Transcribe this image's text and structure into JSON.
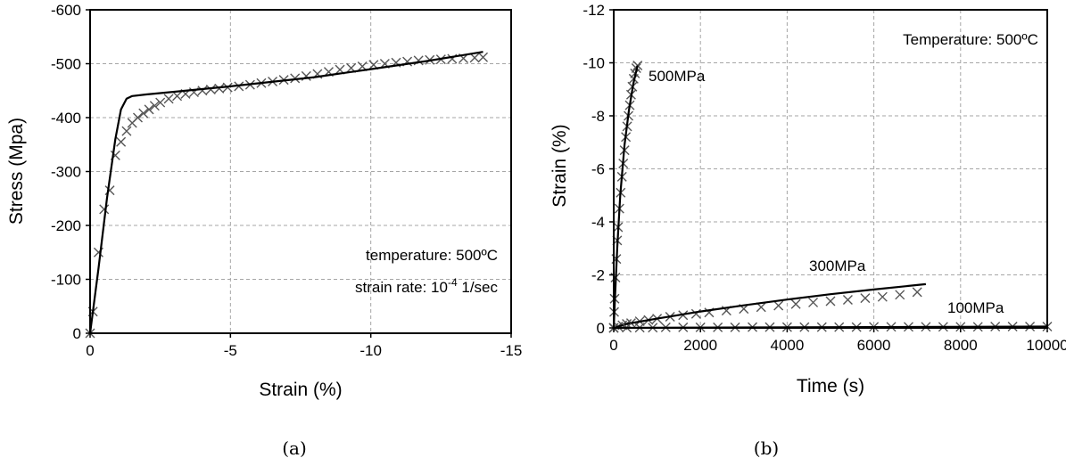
{
  "chart_data": [
    {
      "type": "scatter",
      "panel_label": "(a)",
      "xlabel": "Strain (%)",
      "ylabel": "Stress (Mpa)",
      "xlim": [
        0,
        -15
      ],
      "ylim": [
        0,
        -600
      ],
      "x_ticks": [
        0,
        -5,
        -10,
        -15
      ],
      "y_ticks": [
        0,
        -100,
        -200,
        -300,
        -400,
        -500,
        -600
      ],
      "x_tick_labels": [
        "0",
        "-5",
        "-10",
        "-15"
      ],
      "y_tick_labels": [
        "0",
        "-100",
        "-200",
        "-300",
        "-400",
        "-500",
        "-600"
      ],
      "grid": true,
      "annotations": {
        "temperature": "temperature: 500ºC",
        "strain_rate_prefix": "strain rate: 10",
        "strain_rate_exp": "-4",
        "strain_rate_suffix": " 1/sec"
      },
      "series": [
        {
          "style": "line",
          "x": [
            0,
            -0.3,
            -0.6,
            -0.9,
            -1.1,
            -1.3,
            -1.5,
            -2,
            -3,
            -5,
            -8,
            -10,
            -12,
            -14
          ],
          "y": [
            0,
            -120,
            -250,
            -360,
            -415,
            -435,
            -440,
            -443,
            -448,
            -458,
            -475,
            -490,
            -505,
            -522
          ]
        },
        {
          "style": "markers",
          "marker": "x",
          "x": [
            0,
            -0.1,
            -0.3,
            -0.5,
            -0.7,
            -0.9,
            -1.1,
            -1.3,
            -1.5,
            -1.7,
            -1.9,
            -2.1,
            -2.3,
            -2.5,
            -2.8,
            -3.1,
            -3.4,
            -3.7,
            -4.0,
            -4.3,
            -4.6,
            -4.9,
            -5.3,
            -5.7,
            -6.1,
            -6.5,
            -6.9,
            -7.3,
            -7.7,
            -8.1,
            -8.5,
            -8.9,
            -9.3,
            -9.7,
            -10.1,
            -10.5,
            -10.9,
            -11.3,
            -11.7,
            -12.1,
            -12.5,
            -12.9,
            -13.3,
            -13.7,
            -14.0
          ],
          "y": [
            0,
            -40,
            -150,
            -230,
            -265,
            -330,
            -355,
            -375,
            -390,
            -400,
            -408,
            -415,
            -422,
            -428,
            -435,
            -440,
            -444,
            -447,
            -450,
            -452,
            -454,
            -456,
            -458,
            -461,
            -464,
            -467,
            -470,
            -473,
            -477,
            -481,
            -485,
            -489,
            -492,
            -495,
            -498,
            -500,
            -502,
            -504,
            -506,
            -507,
            -508,
            -509,
            -510,
            -511,
            -512
          ]
        }
      ]
    },
    {
      "type": "scatter",
      "panel_label": "(b)",
      "xlabel": "Time (s)",
      "ylabel": "Strain (%)",
      "xlim": [
        0,
        10000
      ],
      "ylim": [
        0,
        -12
      ],
      "x_ticks": [
        0,
        2000,
        4000,
        6000,
        8000,
        10000
      ],
      "y_ticks": [
        0,
        -2,
        -4,
        -6,
        -8,
        -10,
        -12
      ],
      "x_tick_labels": [
        "0",
        "2000",
        "4000",
        "6000",
        "8000",
        "10000"
      ],
      "y_tick_labels": [
        "0",
        "-2",
        "-4",
        "-6",
        "-8",
        "-10",
        "-12"
      ],
      "grid": true,
      "annotations": {
        "temperature": "Temperature: 500ºC"
      },
      "series": [
        {
          "name": "500MPa",
          "line": {
            "x": [
              0,
              30,
              80,
              150,
              250,
              350,
              450,
              550
            ],
            "y": [
              0,
              -1.2,
              -3.0,
              -5.0,
              -6.9,
              -8.2,
              -9.2,
              -9.9
            ]
          },
          "markers": {
            "x": [
              0,
              10,
              20,
              40,
              60,
              80,
              100,
              130,
              160,
              190,
              220,
              250,
              280,
              310,
              340,
              370,
              400,
              430,
              460,
              490,
              520,
              550
            ],
            "y": [
              0,
              -0.6,
              -1.1,
              -1.9,
              -2.6,
              -3.3,
              -3.8,
              -4.5,
              -5.1,
              -5.7,
              -6.2,
              -6.7,
              -7.2,
              -7.6,
              -8.0,
              -8.4,
              -8.8,
              -9.1,
              -9.4,
              -9.6,
              -9.8,
              -9.9
            ]
          }
        },
        {
          "name": "300MPa",
          "line": {
            "x": [
              0,
              300,
              1000,
              2000,
              3000,
              4000,
              5000,
              6000,
              7200
            ],
            "y": [
              0,
              -0.15,
              -0.35,
              -0.62,
              -0.85,
              -1.07,
              -1.27,
              -1.45,
              -1.65
            ]
          },
          "markers": {
            "x": [
              0,
              100,
              200,
              300,
              400,
              600,
              800,
              1000,
              1300,
              1600,
              1900,
              2200,
              2600,
              3000,
              3400,
              3800,
              4200,
              4600,
              5000,
              5400,
              5800,
              6200,
              6600,
              7000
            ],
            "y": [
              0,
              -0.05,
              -0.1,
              -0.15,
              -0.18,
              -0.25,
              -0.3,
              -0.35,
              -0.42,
              -0.48,
              -0.53,
              -0.58,
              -0.65,
              -0.72,
              -0.78,
              -0.84,
              -0.9,
              -0.96,
              -1.01,
              -1.06,
              -1.12,
              -1.17,
              -1.25,
              -1.35
            ]
          }
        },
        {
          "name": "100MPa",
          "line": {
            "x": [
              0,
              10000
            ],
            "y": [
              0,
              -0.05
            ]
          },
          "markers": {
            "x": [
              0,
              300,
              600,
              900,
              1200,
              1600,
              2000,
              2400,
              2800,
              3200,
              3600,
              4000,
              4400,
              4800,
              5200,
              5600,
              6000,
              6400,
              6800,
              7200,
              7600,
              8000,
              8400,
              8800,
              9200,
              9600,
              10000
            ],
            "y": [
              0,
              -0.01,
              -0.01,
              -0.01,
              -0.02,
              -0.02,
              -0.02,
              -0.02,
              -0.02,
              -0.03,
              -0.03,
              -0.03,
              -0.03,
              -0.03,
              -0.03,
              -0.03,
              -0.04,
              -0.04,
              -0.04,
              -0.04,
              -0.04,
              -0.04,
              -0.04,
              -0.05,
              -0.05,
              -0.05,
              -0.05
            ]
          }
        }
      ]
    }
  ]
}
